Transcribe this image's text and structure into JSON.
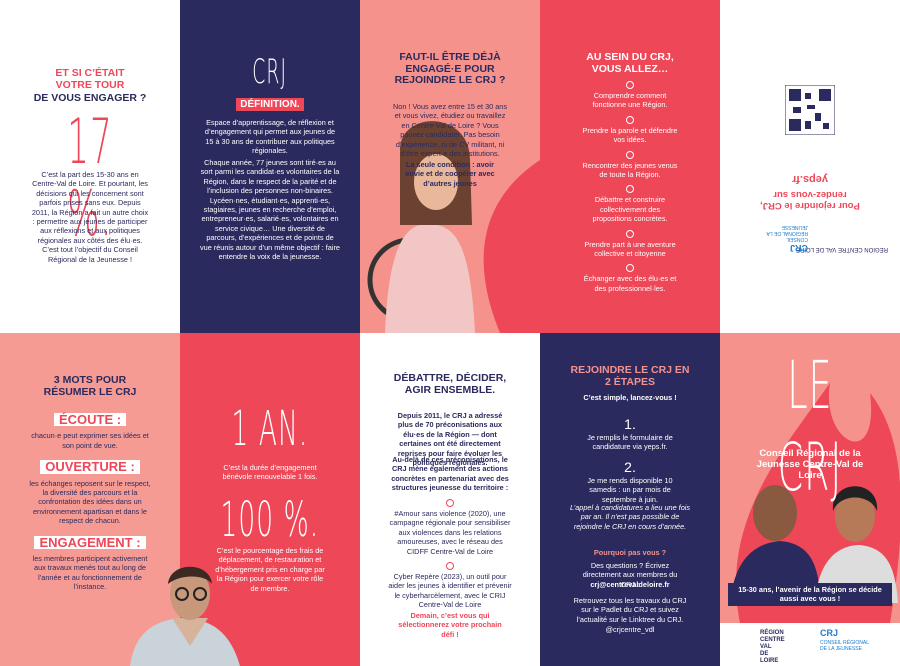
{
  "panel_engager": {
    "title_line1": "ET SI C’ÉTAIT",
    "title_line2": "VOTRE TOUR",
    "title_line3": "DE VOUS ENGAGER ?",
    "stat": "17 %.",
    "text": "C’est la part des 15-30 ans en Centre-Val de Loire. Et pourtant, les décisions qui les concernent sont parfois prises sans eux. Depuis 2011, la Région a fait un autre choix : permettre aux jeunes de participer aux réflexions et aux politiques régionales aux côtés des élu·es. C’est tout l’objectif du Conseil Régional de la Jeunesse !"
  },
  "panel_definition": {
    "logo": "CRJ",
    "heading": "DÉFINITION.",
    "paragraph1": "Espace d’apprentissage, de réflexion et d’engagement qui permet aux jeunes de 15 à 30 ans de contribuer aux politiques régionales.",
    "paragraph2": "Chaque année, 77 jeunes sont tiré·es au sort parmi les candidat·es volontaires de la Région, dans le respect de la parité et de l’inclusion des personnes non-binaires. Lycéen·nes, étudiant·es, apprenti·es, stagiaires, jeunes en recherche d’emploi, entrepreneur·es, salarié·es, volontaires en service civique… Une diversité de parcours, d’expériences et de points de vue réunis autour d’un même objectif : faire entendre la voix de la jeunesse."
  },
  "panel_faut_il": {
    "title": "FAUT-IL ÊTRE DÉJÀ ENGAGÉ·E POUR REJOINDRE LE CRJ ?",
    "text": "Non ! Vous avez entre 15 et 30 ans et vous vivez, étudiez ou travaillez en Centre-Val de Loire ? Vous pouvez candidater. Pas besoin d’expérience, ni de CV militant, ni d’être expert·e des institutions.",
    "condition": "La seule condition : avoir envie et de coopérer avec d’autres jeunes"
  },
  "panel_au_sein": {
    "title": "AU SEIN DU CRJ, VOUS ALLEZ…",
    "items": [
      "Comprendre comment fonctionne une Région.",
      "Prendre la parole et défendre vos idées.",
      "Rencontrer des jeunes venus de toute la Région.",
      "Débattre et construire collectivement des propositions concrètes.",
      "Prendre part à une aventure collective et citoyenne",
      "Échanger avec des élu·es et des professionnel·les."
    ]
  },
  "panel_back": {
    "tagline": "Pour rejoindre le CRJ, rendez-vous sur",
    "url": "yeps.fr",
    "region_logo": "RÉGION CENTRE VAL DE LOIRE",
    "crj_logo": "CRJ",
    "crj_sub": "CONSEIL RÉGIONAL DE LA JEUNESSE"
  },
  "panel_mots": {
    "title": "3 MOTS POUR RÉSUMER LE CRJ",
    "words": [
      {
        "word": "ÉCOUTE :",
        "text": "chacun·e peut exprimer ses idées et son point de vue."
      },
      {
        "word": "OUVERTURE :",
        "text": "les échanges reposent sur le respect, la diversité des parcours et la confrontation des idées dans un environnement apartisan et dans le respect de chacun."
      },
      {
        "word": "ENGAGEMENT :",
        "text": "les membres participent activement aux travaux menés tout au long de l’année et au fonctionnement de l’instance."
      }
    ]
  },
  "panel_chiffres": {
    "stat1": "1 AN.",
    "text1": "C’est la durée d’engagement bénévole renouvelable 1 fois.",
    "stat2": "100 %.",
    "text2": "C’est le pourcentage des frais de déplacement, de restauration et d’hébergement pris en charge par la Région pour exercer votre rôle de membre."
  },
  "panel_debattre": {
    "title": "DÉBATTRE, DÉCIDER, AGIR ENSEMBLE.",
    "paragraph1": "Depuis 2011, le CRJ a adressé plus de 70 préconisations aux élu·es de la Région — dont certaines ont été directement reprises pour faire évoluer les politiques régionales.",
    "paragraph2": "Au-delà de ces préconisations, le CRJ mène également des actions concrètes en partenariat avec des structures jeunesse du territoire :",
    "examples": [
      "#Amour sans violence (2020), une campagne régionale pour sensibiliser aux violences dans les relations amoureuses, avec le réseau des CIDFF Centre-Val de Loire",
      "Cyber Repère (2023), un outil pour aider les jeunes à identifier et prévenir le cyberharcèlement, avec le CRIJ Centre-Val de Loire"
    ],
    "closing": "Demain, c’est vous qui sélectionnerez votre prochain défi !"
  },
  "panel_rejoindre": {
    "title": "REJOINDRE LE CRJ EN 2 ÉTAPES",
    "intro": "C’est simple, lancez-vous !",
    "steps": [
      {
        "number": "1.",
        "text": "Je remplis le formulaire de candidature via yeps.fr."
      },
      {
        "number": "2.",
        "text": "Je me rends disponible 10 samedis : un par mois de septembre à juin."
      }
    ],
    "note": "L’appel à candidatures a lieu une fois par an. Il n’est pas possible de rejoindre le CRJ en cours d’année.",
    "question": "Pourquoi pas vous ?",
    "contact": "Des questions ? Écrivez directement aux membres du CRJ :",
    "email": "crj@centrevaldeloire.fr",
    "social_text": "Retrouvez tous les travaux du CRJ sur le Padlet du CRJ et suivez l’actualité sur le Linktree du CRJ.",
    "handle": "@crjcentre_vdl"
  },
  "panel_cover": {
    "title": "LE CRJ",
    "subtitle": "Conseil Régional de la Jeunesse Centre-Val de Loire",
    "caption": "15-30 ans, l’avenir de la Région se décide aussi avec vous !",
    "region_logo": "RÉGION CENTRE VAL DE LOIRE",
    "crj_logo": "CRJ",
    "crj_sub": "CONSEIL RÉGIONAL DE LA JEUNESSE"
  }
}
